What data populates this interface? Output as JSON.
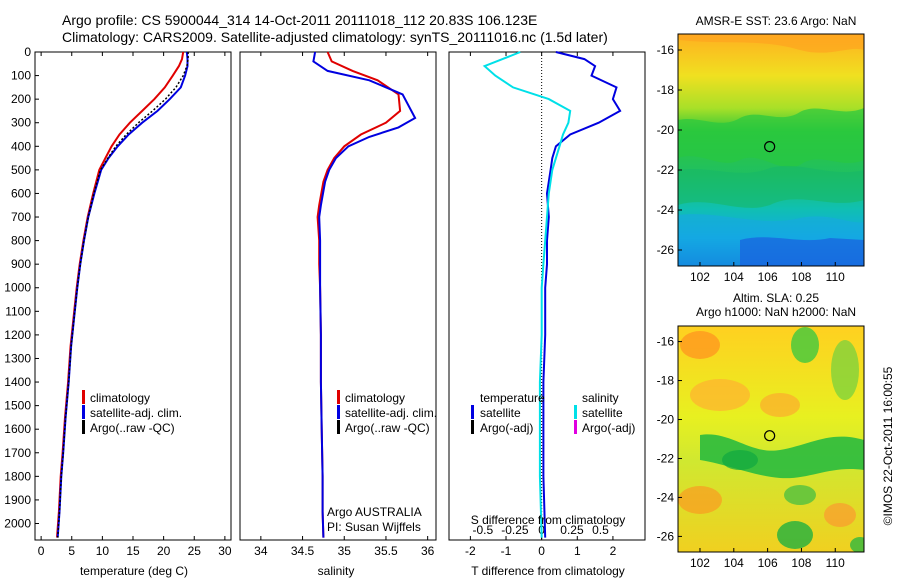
{
  "header": {
    "line1": "Argo profile: CS 5900044_314 14-Oct-2011 20111018_112 20.83S 106.123E",
    "line2": "Climatology: CARS2009. Satellite-adjusted climatology: synTS_20111016.nc (1.5d later)"
  },
  "side_label": "©IMOS 22-Oct-2011 16:00:55",
  "colors": {
    "climatology": "#e00000",
    "satellite": "#0000e0",
    "argo": "#000000",
    "salinity_diff": "#00e0e8",
    "argo_adj_sal": "#e000e0"
  },
  "chart_data": [
    {
      "id": "temperature",
      "type": "line",
      "xlabel": "temperature (deg C)",
      "ylabel": "",
      "xlim": [
        -1,
        31
      ],
      "ylim": [
        2070,
        0
      ],
      "xticks": [
        0,
        5,
        10,
        15,
        20,
        25,
        30
      ],
      "yticks": [
        0,
        100,
        200,
        300,
        400,
        500,
        600,
        700,
        800,
        900,
        1000,
        1100,
        1200,
        1300,
        1400,
        1500,
        1600,
        1700,
        1800,
        1900,
        2000
      ],
      "legend": {
        "placement": "bottom-center",
        "entries": [
          "climatology",
          "satellite-adj. clim.",
          "Argo(..raw -QC)"
        ]
      },
      "series": [
        {
          "name": "climatology",
          "color": "#e00000",
          "x": [
            23.2,
            23.0,
            22.5,
            21.5,
            20.2,
            18.5,
            16.5,
            14.5,
            12.8,
            11.5,
            10.5,
            9.5,
            8.5,
            7.6,
            6.9,
            6.3,
            5.8,
            5.4,
            4.8,
            4.4,
            3.9,
            3.5,
            3.2,
            2.9,
            2.6
          ],
          "y": [
            0,
            30,
            60,
            100,
            150,
            200,
            250,
            300,
            350,
            400,
            450,
            500,
            600,
            700,
            800,
            900,
            1000,
            1100,
            1250,
            1400,
            1550,
            1700,
            1800,
            1950,
            2060
          ]
        },
        {
          "name": "satellite-adj. clim.",
          "color": "#0000e0",
          "x": [
            23.8,
            23.9,
            23.9,
            23.5,
            22.8,
            21.0,
            19.0,
            16.5,
            14.3,
            12.5,
            11.0,
            9.8,
            8.7,
            7.7,
            7.0,
            6.4,
            5.9,
            5.5,
            4.9,
            4.5,
            4.0,
            3.6,
            3.3,
            3.0,
            2.7
          ],
          "y": [
            0,
            30,
            60,
            100,
            150,
            200,
            250,
            300,
            350,
            400,
            450,
            500,
            600,
            700,
            800,
            900,
            1000,
            1100,
            1250,
            1400,
            1550,
            1700,
            1800,
            1950,
            2060
          ]
        },
        {
          "name": "Argo(..raw -QC)",
          "color": "#000000",
          "dashed": true,
          "x": [
            24.0,
            24.0,
            23.8,
            23.2,
            22.0,
            20.3,
            18.2,
            15.9,
            13.9,
            12.2,
            10.9,
            9.7,
            8.6,
            7.7,
            7.0,
            6.4,
            5.9,
            5.5,
            4.9,
            4.5,
            4.0,
            3.6,
            3.3,
            3.0,
            2.7
          ],
          "y": [
            0,
            30,
            60,
            100,
            150,
            200,
            250,
            300,
            350,
            400,
            450,
            500,
            600,
            700,
            800,
            900,
            1000,
            1100,
            1250,
            1400,
            1550,
            1700,
            1800,
            1950,
            2060
          ]
        }
      ]
    },
    {
      "id": "salinity",
      "type": "line",
      "xlabel": "salinity",
      "ylabel": "",
      "xlim": [
        33.75,
        36.1
      ],
      "ylim": [
        2070,
        0
      ],
      "xticks": [
        34,
        34.5,
        35,
        35.5,
        36
      ],
      "yticks": [],
      "legend": {
        "placement": "bottom-center",
        "entries": [
          "climatology",
          "satellite-adj. clim.",
          "Argo(..raw -QC)"
        ]
      },
      "annotation": {
        "line1": "Argo AUSTRALIA",
        "line2": "PI: Susan Wijffels"
      },
      "series": [
        {
          "name": "climatology",
          "color": "#e00000",
          "x": [
            34.8,
            34.85,
            35.1,
            35.4,
            35.65,
            35.67,
            35.5,
            35.2,
            35.0,
            34.88,
            34.8,
            34.75,
            34.7,
            34.68,
            34.7,
            34.7,
            34.71,
            34.72,
            34.72,
            34.73,
            34.74,
            34.74,
            34.75
          ],
          "y": [
            0,
            40,
            80,
            120,
            180,
            250,
            300,
            350,
            400,
            450,
            500,
            550,
            650,
            700,
            800,
            900,
            1000,
            1200,
            1400,
            1600,
            1800,
            1950,
            2060
          ]
        },
        {
          "name": "satellite-adj. clim.",
          "color": "#0000e0",
          "x": [
            34.65,
            34.63,
            34.8,
            35.3,
            35.7,
            35.85,
            35.65,
            35.3,
            35.05,
            34.9,
            34.82,
            34.77,
            34.72,
            34.7,
            34.71,
            34.71,
            34.71,
            34.72,
            34.72,
            34.73,
            34.74,
            34.74,
            34.75
          ],
          "y": [
            0,
            40,
            80,
            120,
            180,
            280,
            320,
            360,
            400,
            450,
            500,
            550,
            650,
            700,
            800,
            900,
            1000,
            1200,
            1400,
            1600,
            1800,
            1950,
            2060
          ]
        }
      ]
    },
    {
      "id": "difference",
      "type": "line",
      "xlabel": "T difference from climatology",
      "top_label": "S difference from climatology",
      "xlim": [
        -2.6,
        2.9
      ],
      "ylim": [
        2070,
        0
      ],
      "xticks": [
        -2,
        -1,
        0,
        1,
        2
      ],
      "sticks": [
        {
          "label": "-0.5",
          "t": -1.65
        },
        {
          "label": "-0.25",
          "t": -0.75
        },
        {
          "label": "0",
          "t": 0
        },
        {
          "label": "0.25",
          "t": 0.85
        },
        {
          "label": "0.5",
          "t": 1.65
        }
      ],
      "legend": {
        "placement": "bottom-center",
        "temp_title": "temperature",
        "sal_title": "salinity",
        "entries": [
          "satellite",
          "Argo(-adj)",
          "satellite",
          "Argo(-adj)"
        ]
      },
      "series": [
        {
          "name": "T satellite",
          "color": "#0000e0",
          "x": [
            0.4,
            1.2,
            1.5,
            1.4,
            2.1,
            2.0,
            2.2,
            1.6,
            0.8,
            0.4,
            0.3,
            0.25,
            0.15,
            0.2,
            0.15,
            0.15,
            0.1,
            0.1,
            0.05,
            0.05,
            0.05,
            0.1
          ],
          "y": [
            0,
            30,
            60,
            100,
            150,
            200,
            250,
            300,
            350,
            400,
            450,
            500,
            600,
            700,
            800,
            900,
            1000,
            1200,
            1400,
            1600,
            1800,
            2060
          ]
        },
        {
          "name": "S satellite",
          "color": "#00e0e8",
          "x": [
            -0.6,
            -1.1,
            -1.6,
            -1.3,
            -0.8,
            0.2,
            0.8,
            0.75,
            0.6,
            0.5,
            0.4,
            0.3,
            0.2,
            0.15,
            0.1,
            0.05,
            0.0,
            0.0,
            -0.05,
            -0.05,
            -0.05,
            0.0
          ],
          "y": [
            0,
            30,
            60,
            100,
            150,
            200,
            250,
            300,
            350,
            400,
            450,
            500,
            600,
            700,
            800,
            900,
            1000,
            1200,
            1400,
            1600,
            1800,
            2060
          ]
        }
      ]
    },
    {
      "id": "sst_map",
      "type": "heatmap",
      "title": "AMSR-E SST: 23.6  Argo: NaN",
      "xticks": [
        102,
        104,
        106,
        108,
        110
      ],
      "yticks": [
        -16,
        -18,
        -20,
        -22,
        -24,
        -26
      ],
      "xlim": [
        100.7,
        111.7
      ],
      "ylim": [
        -26.8,
        -15.2
      ],
      "marker": {
        "lon": 106.12,
        "lat": -20.83
      }
    },
    {
      "id": "sla_map",
      "type": "heatmap",
      "title_line1": "Altim. SLA: 0.25",
      "title_line2": "Argo h1000: NaN  h2000: NaN",
      "xticks": [
        102,
        104,
        106,
        108,
        110
      ],
      "yticks": [
        -16,
        -18,
        -20,
        -22,
        -24,
        -26
      ],
      "xlim": [
        100.7,
        111.7
      ],
      "ylim": [
        -26.8,
        -15.2
      ],
      "marker": {
        "lon": 106.12,
        "lat": -20.83
      }
    }
  ]
}
